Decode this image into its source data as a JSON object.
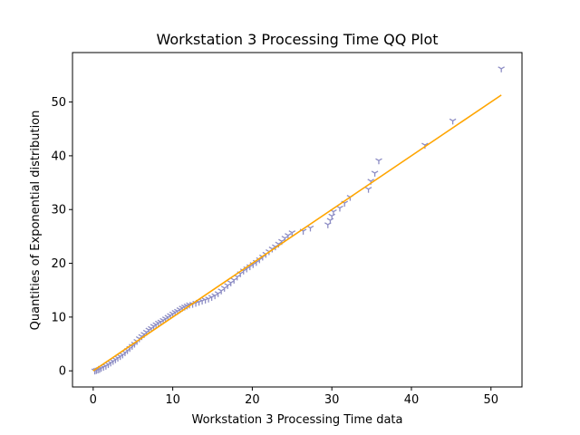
{
  "chart_data": {
    "type": "scatter",
    "title": "Workstation 3 Processing Time QQ Plot",
    "xlabel": "Workstation 3 Processing Time data",
    "ylabel": "Quantities of Exponential distribution",
    "xlim": [
      -2.6,
      53.9
    ],
    "ylim": [
      -3.0,
      59.2
    ],
    "x_ticks": [
      0,
      10,
      20,
      30,
      40,
      50
    ],
    "y_ticks": [
      0,
      10,
      20,
      30,
      40,
      50
    ],
    "grid": false,
    "marker_color": "#8c8cc4",
    "line_color": "#ffa500",
    "series": [
      {
        "marker": "tri_down",
        "points": [
          [
            0.2,
            0.0
          ],
          [
            0.4,
            0.1
          ],
          [
            0.6,
            0.2
          ],
          [
            0.8,
            0.3
          ],
          [
            1.0,
            0.5
          ],
          [
            1.3,
            0.7
          ],
          [
            1.6,
            0.9
          ],
          [
            1.9,
            1.2
          ],
          [
            2.2,
            1.5
          ],
          [
            2.5,
            1.8
          ],
          [
            2.8,
            2.1
          ],
          [
            3.1,
            2.4
          ],
          [
            3.4,
            2.7
          ],
          [
            3.7,
            3.0
          ],
          [
            4.0,
            3.4
          ],
          [
            4.3,
            3.8
          ],
          [
            4.6,
            4.2
          ],
          [
            4.9,
            4.6
          ],
          [
            5.2,
            5.0
          ],
          [
            5.5,
            5.5
          ],
          [
            5.8,
            6.0
          ],
          [
            6.1,
            6.4
          ],
          [
            6.4,
            6.8
          ],
          [
            6.7,
            7.2
          ],
          [
            7.0,
            7.6
          ],
          [
            7.3,
            7.9
          ],
          [
            7.6,
            8.3
          ],
          [
            7.9,
            8.6
          ],
          [
            8.2,
            8.9
          ],
          [
            8.5,
            9.1
          ],
          [
            8.8,
            9.4
          ],
          [
            9.1,
            9.7
          ],
          [
            9.4,
            10.0
          ],
          [
            9.7,
            10.3
          ],
          [
            10.0,
            10.6
          ],
          [
            10.3,
            10.9
          ],
          [
            10.6,
            11.1
          ],
          [
            10.9,
            11.4
          ],
          [
            11.2,
            11.7
          ],
          [
            11.5,
            11.9
          ],
          [
            11.8,
            12.1
          ],
          [
            12.1,
            12.3
          ],
          [
            12.5,
            12.4
          ],
          [
            12.9,
            12.6
          ],
          [
            13.3,
            12.8
          ],
          [
            13.7,
            13.0
          ],
          [
            14.1,
            13.2
          ],
          [
            14.5,
            13.4
          ],
          [
            14.9,
            13.7
          ],
          [
            15.3,
            14.0
          ],
          [
            15.7,
            14.4
          ],
          [
            16.1,
            14.9
          ],
          [
            16.5,
            15.4
          ],
          [
            16.9,
            15.9
          ],
          [
            17.3,
            16.4
          ],
          [
            17.7,
            16.9
          ],
          [
            18.1,
            17.5
          ],
          [
            18.5,
            18.1
          ],
          [
            18.9,
            18.6
          ],
          [
            19.3,
            19.0
          ],
          [
            19.7,
            19.4
          ],
          [
            20.1,
            19.8
          ],
          [
            20.5,
            20.2
          ],
          [
            20.9,
            20.7
          ],
          [
            21.3,
            21.2
          ],
          [
            21.7,
            21.7
          ],
          [
            22.1,
            22.2
          ],
          [
            22.5,
            22.7
          ],
          [
            22.9,
            23.1
          ],
          [
            23.3,
            23.6
          ],
          [
            23.7,
            24.1
          ],
          [
            24.1,
            24.7
          ],
          [
            24.5,
            25.2
          ],
          [
            25.0,
            25.7
          ],
          [
            26.4,
            26.0
          ],
          [
            27.3,
            26.6
          ],
          [
            29.5,
            27.2
          ],
          [
            29.8,
            28.0
          ],
          [
            30.0,
            28.8
          ],
          [
            30.2,
            29.6
          ],
          [
            31.0,
            30.3
          ],
          [
            31.6,
            31.2
          ],
          [
            32.3,
            32.3
          ],
          [
            34.6,
            33.8
          ],
          [
            34.9,
            35.3
          ],
          [
            35.4,
            36.8
          ],
          [
            35.9,
            39.1
          ],
          [
            41.7,
            42.0
          ],
          [
            45.2,
            46.5
          ],
          [
            51.3,
            56.2
          ]
        ]
      }
    ],
    "reference_line": [
      [
        0.0,
        0.0
      ],
      [
        51.3,
        51.3
      ]
    ]
  }
}
